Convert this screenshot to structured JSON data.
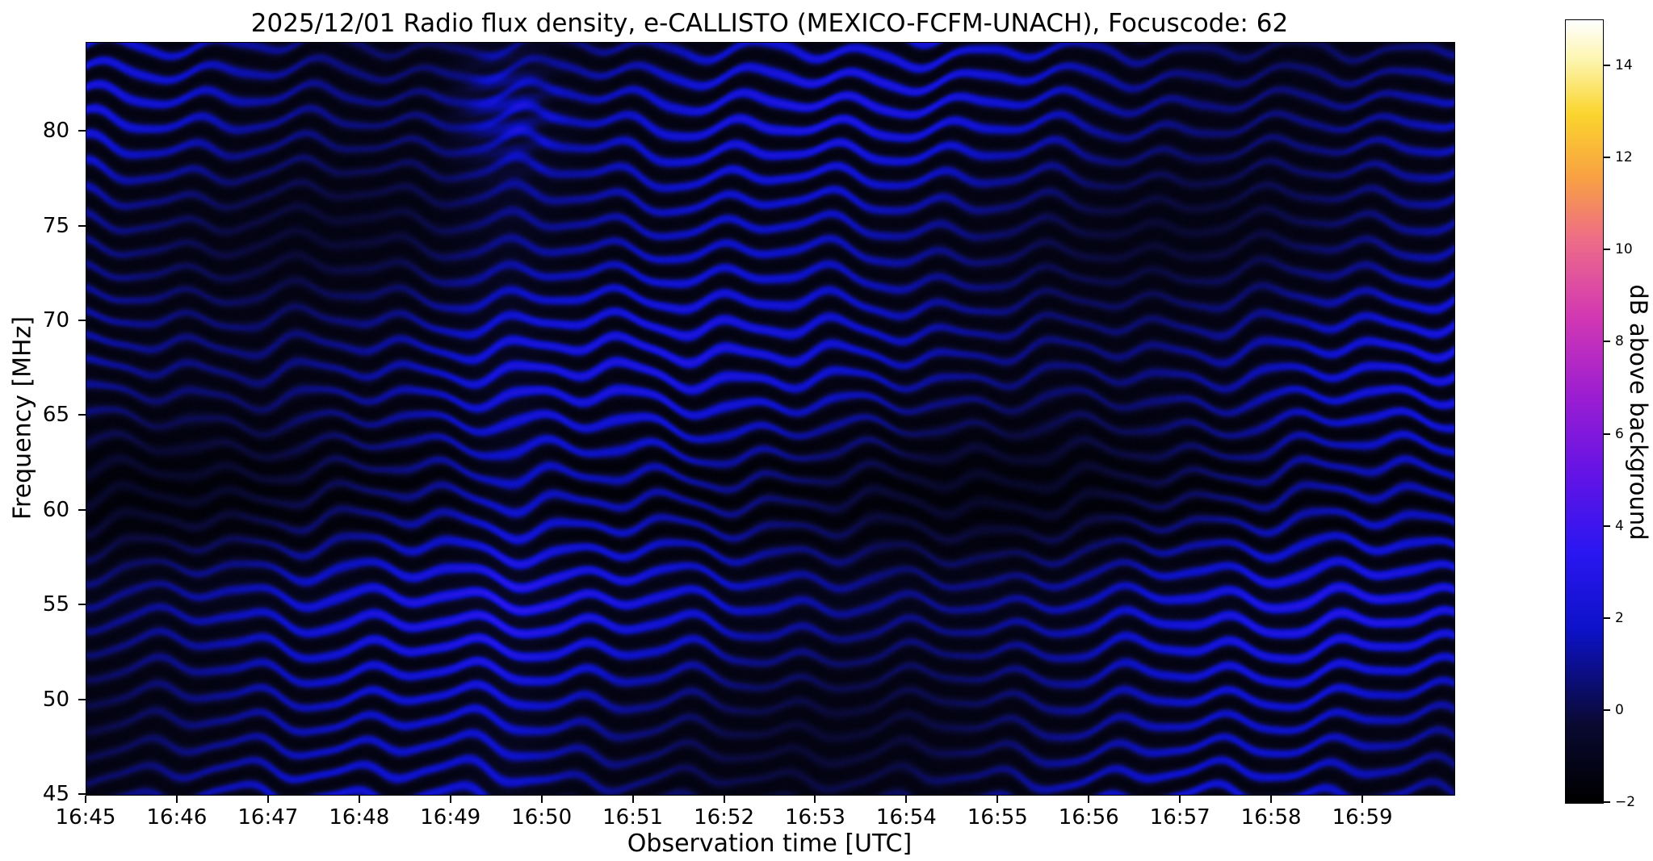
{
  "figure": {
    "background_color": "#ffffff",
    "station": "MEXICO-FCFM-UNACH",
    "date": "2025/12/01",
    "focuscode": "62"
  },
  "chart_data": {
    "type": "heatmap",
    "title": "2025/12/01  Radio flux density, e-CALLISTO (MEXICO-FCFM-UNACH), Focuscode: 62",
    "xlabel": "Observation time [UTC]",
    "ylabel": "Frequency [MHz]",
    "x_tick_labels": [
      "16:45",
      "16:46",
      "16:47",
      "16:48",
      "16:49",
      "16:50",
      "16:51",
      "16:52",
      "16:53",
      "16:54",
      "16:55",
      "16:56",
      "16:57",
      "16:58",
      "16:59"
    ],
    "x_range": [
      "16:45",
      "17:00"
    ],
    "y_tick_labels": [
      "80",
      "75",
      "70",
      "65",
      "60",
      "55",
      "50",
      "45"
    ],
    "y_tick_values": [
      80,
      75,
      70,
      65,
      60,
      55,
      50,
      45
    ],
    "y_range_mhz": [
      45,
      84.7
    ],
    "grid": false,
    "legend_position": "right-colorbar",
    "colorbar": {
      "label": "dB above background",
      "tick_labels": [
        "14",
        "12",
        "10",
        "8",
        "6",
        "4",
        "2",
        "0",
        "−2"
      ],
      "tick_values": [
        14,
        12,
        10,
        8,
        6,
        4,
        2,
        0,
        -2
      ],
      "vmin": -2,
      "vmax": 15,
      "colormap_stops": [
        {
          "pos": 0.0,
          "color": "#000000"
        },
        {
          "pos": 0.1,
          "color": "#0a0a33"
        },
        {
          "pos": 0.22,
          "color": "#0d12c8"
        },
        {
          "pos": 0.32,
          "color": "#2b17f2"
        },
        {
          "pos": 0.42,
          "color": "#6414e6"
        },
        {
          "pos": 0.52,
          "color": "#9c1ed2"
        },
        {
          "pos": 0.62,
          "color": "#d238b4"
        },
        {
          "pos": 0.72,
          "color": "#ee6d88"
        },
        {
          "pos": 0.8,
          "color": "#f9a243"
        },
        {
          "pos": 0.88,
          "color": "#fbd52e"
        },
        {
          "pos": 0.95,
          "color": "#fdf6b0"
        },
        {
          "pos": 1.0,
          "color": "#ffffff"
        }
      ]
    },
    "data_summary": {
      "description": "Dynamic radio spectrum dominated by wavy horizontal interference fringes across the whole 45-84.7 MHz band; flux values mostly between -2 and +3 dB above background (black to blue), with a slightly brighter vertical column near 16:49.5 showing faint magenta patches around 79-83 MHz. No solar burst visible.",
      "typical_value_db_range": [
        -1.5,
        3
      ],
      "fringe_vertical_spacing_mhz": 1.3,
      "anomaly_column_time": "16:49.5"
    }
  }
}
